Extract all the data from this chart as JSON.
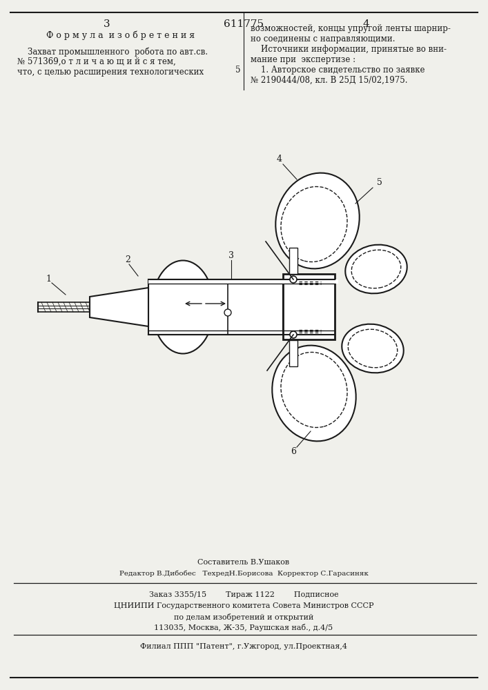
{
  "patent_number": "611775",
  "page_left": "3",
  "page_right": "4",
  "section_title": "Ф о р м у л а  и з о б р е т е н и я",
  "left_text_line1": "    Захват промышленного  робота по авт.св.",
  "left_text_line2": "№ 571369,о т л и ч а ю щ и й с я тем,",
  "left_text_line3": "что, с целью расширения технологических",
  "right_text_line1": "возможностей, концы упругой ленты шарнир-",
  "right_text_line2": "но соединены с направляющими.",
  "right_text_line3": "    Источники информации, принятые во вни-",
  "right_text_line4": "мание при  экспертизе :",
  "right_text_line5": "    1. Авторское свидетельство по заявке",
  "right_text_line6": "№ 2190444/08, кл. В 25Д 15/02,1975.",
  "right_num5": "5",
  "footer_line1": "Составитель В.Ушаков",
  "footer_line2": "Редактор В.Дибобес   ТехредН.Борисова  Корректор С.Гарасиняк",
  "footer_line3": "Заказ 3355/15        Тираж 1122        Подписное",
  "footer_line4": "ЦНИИПИ Государственного комитета Совета Министров СССР",
  "footer_line5": "по делам изобретений и открытий",
  "footer_line6": "113035, Москва, Ж-35, Раушская наб., д.4/5",
  "footer_line7": "Филиал ППП \"Патент\", г.Ужгород, ул.Проектная,4",
  "bg_color": "#f0f0eb",
  "text_color": "#1a1a1a"
}
